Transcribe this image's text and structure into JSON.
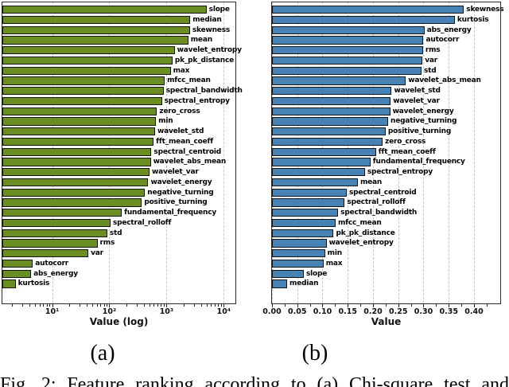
{
  "captions": {
    "panel_a": "(a)",
    "panel_b": "(b)",
    "figure": "Fig. 2: Feature ranking according to (a) Chi-square test and"
  },
  "chart_data": [
    {
      "type": "bar",
      "orientation": "horizontal",
      "panel": "(a)",
      "title": "",
      "xlabel": "Value (log)",
      "ylabel": "",
      "xscale": "log",
      "xlim": [
        1.35,
        16000
      ],
      "xticks": [
        10,
        100,
        1000,
        10000
      ],
      "xtick_labels": [
        "10¹",
        "10²",
        "10³",
        "10⁴"
      ],
      "grid": "vertical-dashed-major",
      "legend": "none",
      "bar_color": "#6b8e23",
      "bar_edge_color": "#131313",
      "categories": [
        "slope",
        "median",
        "skewness",
        "mean",
        "wavelet_entropy",
        "pk_pk_distance",
        "max",
        "mfcc_mean",
        "spectral_bandwidth",
        "spectral_entropy",
        "zero_cross",
        "min",
        "wavelet_std",
        "fft_mean_coeff",
        "spectral_centroid",
        "wavelet_abs_mean",
        "wavelet_var",
        "wavelet_energy",
        "negative_turning",
        "positive_turning",
        "fundamental_frequency",
        "spectral_rolloff",
        "std",
        "rms",
        "var",
        "autocorr",
        "abs_energy",
        "kurtosis"
      ],
      "values": [
        5000,
        2600,
        2570,
        2400,
        1390,
        1270,
        1180,
        930,
        890,
        830,
        680,
        655,
        630,
        595,
        545,
        530,
        505,
        480,
        420,
        370,
        165,
        105,
        92,
        62,
        43,
        4.6,
        4.3,
        2.3
      ]
    },
    {
      "type": "bar",
      "orientation": "horizontal",
      "panel": "(b)",
      "title": "",
      "xlabel": "Value",
      "ylabel": "",
      "xscale": "linear",
      "xlim": [
        0,
        0.452
      ],
      "xticks": [
        0,
        0.05,
        0.1,
        0.15,
        0.2,
        0.25,
        0.3,
        0.35,
        0.4
      ],
      "xtick_labels": [
        "0.00",
        "0.05",
        "0.10",
        "0.15",
        "0.20",
        "0.25",
        "0.30",
        "0.35",
        "0.40"
      ],
      "grid": "vertical-dashed-major",
      "legend": "none",
      "bar_color": "#4682b4",
      "bar_edge_color": "#131313",
      "categories": [
        "skewness",
        "kurtosis",
        "abs_energy",
        "autocorr",
        "rms",
        "var",
        "std",
        "wavelet_abs_mean",
        "wavelet_std",
        "wavelet_var",
        "wavelet_energy",
        "negative_turning",
        "positive_turning",
        "zero_cross",
        "fft_mean_coeff",
        "fundamental_frequency",
        "spectral_entropy",
        "mean",
        "spectral_centroid",
        "spectral_rolloff",
        "spectral_bandwidth",
        "mfcc_mean",
        "pk_pk_distance",
        "wavelet_entropy",
        "min",
        "max",
        "slope",
        "median"
      ],
      "values": [
        0.38,
        0.362,
        0.302,
        0.3,
        0.299,
        0.298,
        0.296,
        0.265,
        0.237,
        0.235,
        0.234,
        0.23,
        0.225,
        0.219,
        0.206,
        0.195,
        0.184,
        0.17,
        0.148,
        0.144,
        0.131,
        0.126,
        0.122,
        0.108,
        0.105,
        0.102,
        0.063,
        0.03
      ]
    }
  ]
}
